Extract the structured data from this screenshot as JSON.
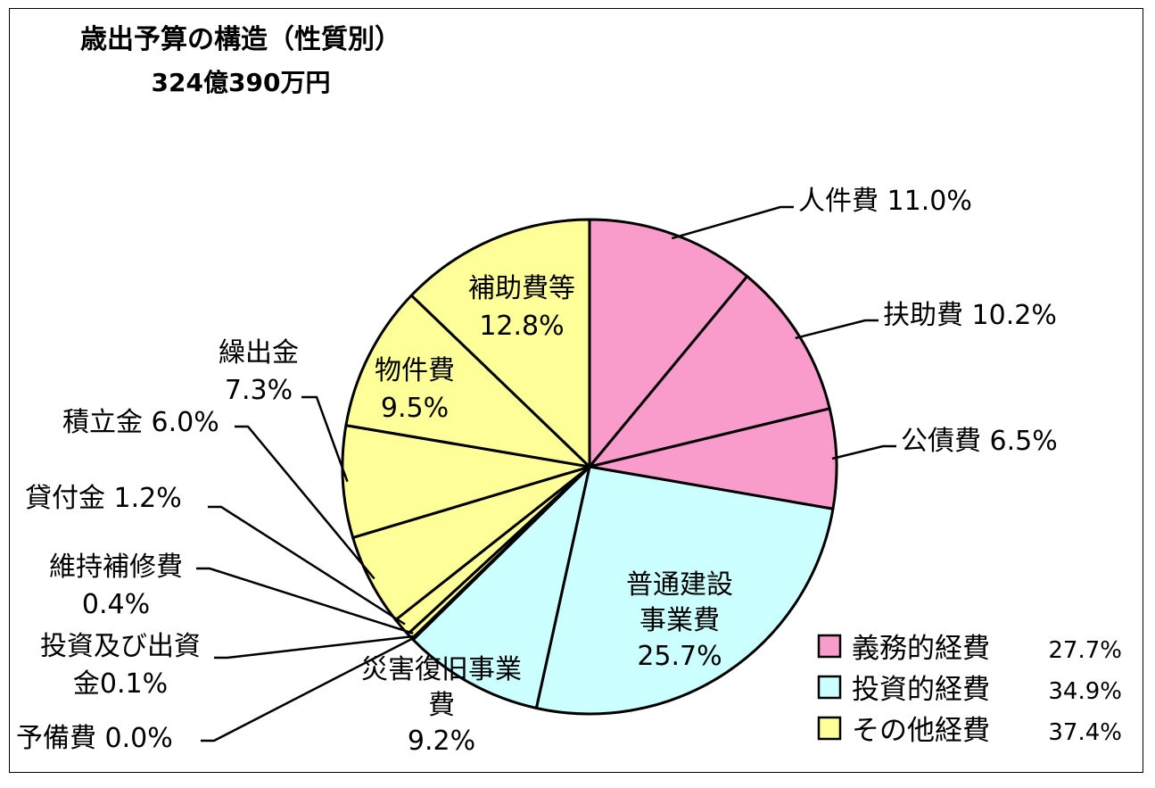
{
  "chart_data": {
    "type": "pie",
    "title": "歳出予算の構造（性質別）",
    "subtitle": "324億390万円",
    "colors": {
      "mandatory": "#F99CCB",
      "investment": "#CCFFFF",
      "other": "#FFFF99",
      "outline": "#000000"
    },
    "slices": [
      {
        "name": "人件費",
        "value": 11.0,
        "label": "人件費 11.0%",
        "group": "mandatory"
      },
      {
        "name": "扶助費",
        "value": 10.2,
        "label": "扶助費 10.2%",
        "group": "mandatory"
      },
      {
        "name": "公債費",
        "value": 6.5,
        "label": "公債費 6.5%",
        "group": "mandatory"
      },
      {
        "name": "普通建設事業費",
        "value": 25.7,
        "label_lines": [
          "普通建設",
          "事業費",
          "25.7%"
        ],
        "group": "investment"
      },
      {
        "name": "災害復旧事業費",
        "value": 9.2,
        "label_lines": [
          "災害復旧事業",
          "費",
          "9.2%"
        ],
        "group": "investment"
      },
      {
        "name": "予備費",
        "value": 0.0,
        "label": "予備費 0.0%",
        "group": "other"
      },
      {
        "name": "投資及び出資金",
        "value": 0.1,
        "label_lines": [
          "投資及び出資",
          "金0.1%"
        ],
        "group": "other"
      },
      {
        "name": "維持補修費",
        "value": 0.4,
        "label_lines": [
          "維持補修費",
          "0.4%"
        ],
        "group": "other"
      },
      {
        "name": "貸付金",
        "value": 1.2,
        "label": "貸付金 1.2%",
        "group": "other"
      },
      {
        "name": "積立金",
        "value": 6.0,
        "label": "積立金 6.0%",
        "group": "other"
      },
      {
        "name": "繰出金",
        "value": 7.3,
        "label_lines": [
          "繰出金",
          "7.3%"
        ],
        "group": "other"
      },
      {
        "name": "物件費",
        "value": 9.5,
        "label_lines": [
          "物件費",
          "9.5%"
        ],
        "group": "other"
      },
      {
        "name": "補助費等",
        "value": 12.8,
        "label_lines": [
          "補助費等",
          "12.8%"
        ],
        "group": "other"
      }
    ],
    "legend": [
      {
        "name": "義務的経費",
        "value": "27.7%",
        "group": "mandatory"
      },
      {
        "name": "投資的経費",
        "value": "34.9%",
        "group": "investment"
      },
      {
        "name": "その他経費",
        "value": "37.4%",
        "group": "other"
      }
    ]
  }
}
